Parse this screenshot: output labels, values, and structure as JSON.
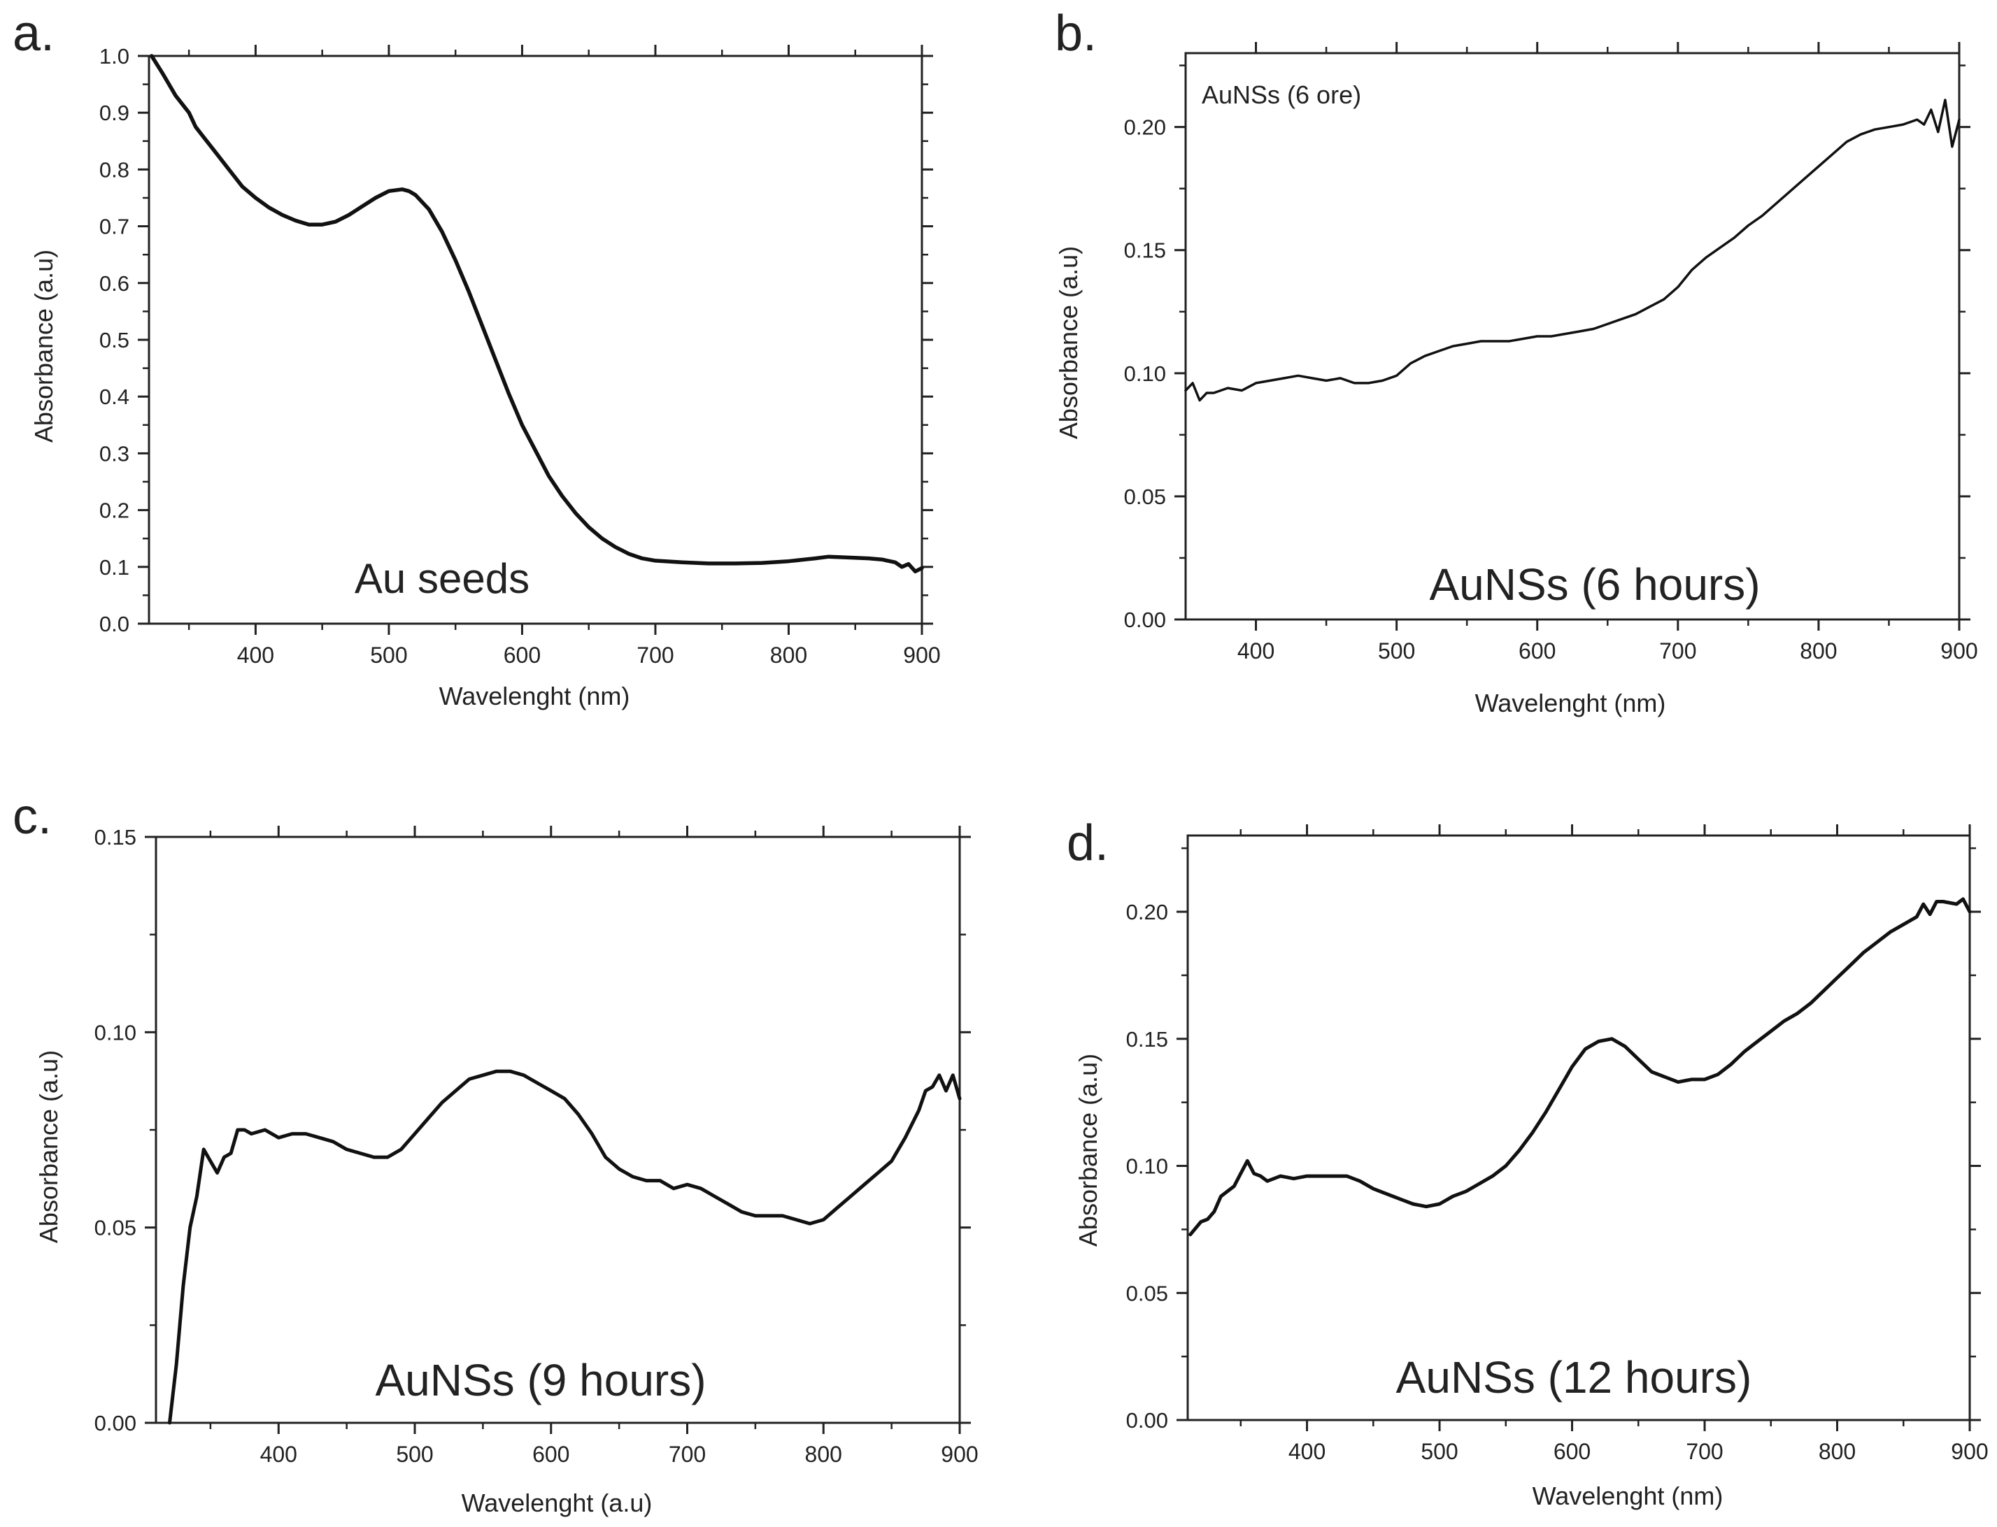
{
  "chart_data": [
    {
      "type": "line",
      "panel_label": "a.",
      "title": "",
      "annotation": "Au seeds",
      "xlabel": "Wavelenght (nm)",
      "ylabel": "Absorbance (a.u)",
      "xlim": [
        320,
        900
      ],
      "ylim": [
        0.0,
        1.0
      ],
      "xticks": [
        400,
        500,
        600,
        700,
        800,
        900
      ],
      "xtick_labels": [
        "400",
        "500",
        "600",
        "700",
        "800",
        "900"
      ],
      "yticks": [
        0.0,
        0.1,
        0.2,
        0.3,
        0.4,
        0.5,
        0.6,
        0.7,
        0.8,
        0.9,
        1.0
      ],
      "ytick_labels": [
        "0.0",
        "0.1",
        "0.2",
        "0.3",
        "0.4",
        "0.5",
        "0.6",
        "0.7",
        "0.8",
        "0.9",
        "1.0"
      ],
      "grid": false,
      "series": [
        {
          "name": "Au seeds",
          "x": [
            322,
            330,
            340,
            350,
            355,
            360,
            370,
            380,
            390,
            400,
            410,
            420,
            430,
            440,
            450,
            460,
            470,
            480,
            490,
            500,
            510,
            515,
            520,
            530,
            540,
            550,
            560,
            570,
            580,
            590,
            600,
            610,
            620,
            630,
            640,
            650,
            660,
            670,
            680,
            690,
            700,
            720,
            740,
            760,
            780,
            800,
            820,
            830,
            840,
            860,
            870,
            880,
            885,
            890,
            895,
            900
          ],
          "y": [
            1.0,
            0.97,
            0.93,
            0.9,
            0.875,
            0.86,
            0.83,
            0.8,
            0.77,
            0.75,
            0.733,
            0.72,
            0.71,
            0.703,
            0.703,
            0.708,
            0.72,
            0.735,
            0.75,
            0.762,
            0.765,
            0.762,
            0.755,
            0.73,
            0.69,
            0.64,
            0.585,
            0.525,
            0.465,
            0.405,
            0.35,
            0.305,
            0.26,
            0.225,
            0.195,
            0.17,
            0.15,
            0.135,
            0.123,
            0.115,
            0.111,
            0.108,
            0.106,
            0.106,
            0.107,
            0.11,
            0.115,
            0.118,
            0.117,
            0.115,
            0.113,
            0.108,
            0.1,
            0.105,
            0.092,
            0.098
          ]
        }
      ]
    },
    {
      "type": "line",
      "panel_label": "b.",
      "title": "",
      "legend": "AuNSs (6 ore)",
      "annotation": "AuNSs (6 hours)",
      "xlabel": "Wavelenght (nm)",
      "ylabel": "Absorbance (a.u)",
      "xlim": [
        350,
        900
      ],
      "ylim": [
        0.0,
        0.23
      ],
      "xticks": [
        400,
        500,
        600,
        700,
        800,
        900
      ],
      "xtick_labels": [
        "400",
        "500",
        "600",
        "700",
        "800",
        "900"
      ],
      "yticks": [
        0.0,
        0.05,
        0.1,
        0.15,
        0.2
      ],
      "ytick_labels": [
        "0.00",
        "0.05",
        "0.10",
        "0.15",
        "0.20"
      ],
      "grid": false,
      "series": [
        {
          "name": "AuNSs (6 ore)",
          "x": [
            350,
            355,
            360,
            365,
            370,
            380,
            390,
            400,
            410,
            420,
            430,
            440,
            450,
            460,
            470,
            480,
            490,
            500,
            510,
            520,
            530,
            540,
            550,
            560,
            570,
            580,
            590,
            600,
            610,
            620,
            630,
            640,
            650,
            660,
            670,
            680,
            690,
            700,
            710,
            720,
            730,
            740,
            750,
            760,
            770,
            780,
            790,
            800,
            810,
            820,
            830,
            840,
            850,
            860,
            870,
            875,
            880,
            885,
            890,
            895,
            900
          ],
          "y": [
            0.093,
            0.096,
            0.089,
            0.092,
            0.092,
            0.094,
            0.093,
            0.096,
            0.097,
            0.098,
            0.099,
            0.098,
            0.097,
            0.098,
            0.096,
            0.096,
            0.097,
            0.099,
            0.104,
            0.107,
            0.109,
            0.111,
            0.112,
            0.113,
            0.113,
            0.113,
            0.114,
            0.115,
            0.115,
            0.116,
            0.117,
            0.118,
            0.12,
            0.122,
            0.124,
            0.127,
            0.13,
            0.135,
            0.142,
            0.147,
            0.151,
            0.155,
            0.16,
            0.164,
            0.169,
            0.174,
            0.179,
            0.184,
            0.189,
            0.194,
            0.197,
            0.199,
            0.2,
            0.201,
            0.203,
            0.201,
            0.207,
            0.198,
            0.211,
            0.192,
            0.203
          ]
        }
      ]
    },
    {
      "type": "line",
      "panel_label": "c.",
      "title": "",
      "annotation": "AuNSs (9 hours)",
      "xlabel": "Wavelenght (a.u)",
      "ylabel": "Absorbance (a.u)",
      "xlim": [
        310,
        900
      ],
      "ylim": [
        0.0,
        0.15
      ],
      "xticks": [
        400,
        500,
        600,
        700,
        800,
        900
      ],
      "xtick_labels": [
        "400",
        "500",
        "600",
        "700",
        "800",
        "900"
      ],
      "yticks": [
        0.0,
        0.05,
        0.1,
        0.15
      ],
      "ytick_labels": [
        "0.00",
        "0.05",
        "0.10",
        "0.15"
      ],
      "grid": false,
      "series": [
        {
          "name": "AuNSs (9 hours)",
          "x": [
            320,
            325,
            330,
            335,
            340,
            345,
            350,
            355,
            360,
            365,
            370,
            375,
            380,
            390,
            400,
            410,
            420,
            430,
            440,
            450,
            460,
            470,
            480,
            490,
            500,
            510,
            520,
            530,
            540,
            550,
            560,
            570,
            580,
            590,
            600,
            610,
            620,
            630,
            640,
            650,
            660,
            670,
            680,
            690,
            700,
            710,
            720,
            730,
            740,
            750,
            760,
            770,
            780,
            790,
            800,
            810,
            820,
            830,
            840,
            850,
            860,
            870,
            875,
            880,
            885,
            890,
            895,
            900
          ],
          "y": [
            0.0,
            0.015,
            0.035,
            0.05,
            0.058,
            0.07,
            0.067,
            0.064,
            0.068,
            0.069,
            0.075,
            0.075,
            0.074,
            0.075,
            0.073,
            0.074,
            0.074,
            0.073,
            0.072,
            0.07,
            0.069,
            0.068,
            0.068,
            0.07,
            0.074,
            0.078,
            0.082,
            0.085,
            0.088,
            0.089,
            0.09,
            0.09,
            0.089,
            0.087,
            0.085,
            0.083,
            0.079,
            0.074,
            0.068,
            0.065,
            0.063,
            0.062,
            0.062,
            0.06,
            0.061,
            0.06,
            0.058,
            0.056,
            0.054,
            0.053,
            0.053,
            0.053,
            0.052,
            0.051,
            0.052,
            0.055,
            0.058,
            0.061,
            0.064,
            0.067,
            0.073,
            0.08,
            0.085,
            0.086,
            0.089,
            0.085,
            0.089,
            0.083
          ]
        }
      ]
    },
    {
      "type": "line",
      "panel_label": "d.",
      "title": "",
      "annotation": "AuNSs (12 hours)",
      "xlabel": "Wavelenght (nm)",
      "ylabel": "Absorbance (a.u)",
      "xlim": [
        310,
        900
      ],
      "ylim": [
        0.0,
        0.23
      ],
      "xticks": [
        400,
        500,
        600,
        700,
        800,
        900
      ],
      "xtick_labels": [
        "400",
        "500",
        "600",
        "700",
        "800",
        "900"
      ],
      "yticks": [
        0.0,
        0.05,
        0.1,
        0.15,
        0.2
      ],
      "ytick_labels": [
        "0.00",
        "0.05",
        "0.10",
        "0.15",
        "0.20"
      ],
      "grid": false,
      "series": [
        {
          "name": "AuNSs (12 hours)",
          "x": [
            312,
            320,
            325,
            330,
            335,
            340,
            345,
            350,
            355,
            360,
            365,
            370,
            375,
            380,
            390,
            400,
            410,
            420,
            430,
            440,
            450,
            460,
            470,
            480,
            490,
            500,
            510,
            520,
            530,
            540,
            550,
            560,
            570,
            580,
            590,
            600,
            610,
            620,
            630,
            640,
            650,
            660,
            670,
            680,
            690,
            700,
            710,
            720,
            730,
            740,
            750,
            760,
            770,
            780,
            790,
            800,
            810,
            820,
            830,
            840,
            850,
            860,
            865,
            870,
            875,
            880,
            890,
            895,
            900
          ],
          "y": [
            0.073,
            0.078,
            0.079,
            0.082,
            0.088,
            0.09,
            0.092,
            0.097,
            0.102,
            0.097,
            0.096,
            0.094,
            0.095,
            0.096,
            0.095,
            0.096,
            0.096,
            0.096,
            0.096,
            0.094,
            0.091,
            0.089,
            0.087,
            0.085,
            0.084,
            0.085,
            0.088,
            0.09,
            0.093,
            0.096,
            0.1,
            0.106,
            0.113,
            0.121,
            0.13,
            0.139,
            0.146,
            0.149,
            0.15,
            0.147,
            0.142,
            0.137,
            0.135,
            0.133,
            0.134,
            0.134,
            0.136,
            0.14,
            0.145,
            0.149,
            0.153,
            0.157,
            0.16,
            0.164,
            0.169,
            0.174,
            0.179,
            0.184,
            0.188,
            0.192,
            0.195,
            0.198,
            0.203,
            0.199,
            0.204,
            0.204,
            0.203,
            0.205,
            0.2
          ]
        }
      ]
    }
  ]
}
